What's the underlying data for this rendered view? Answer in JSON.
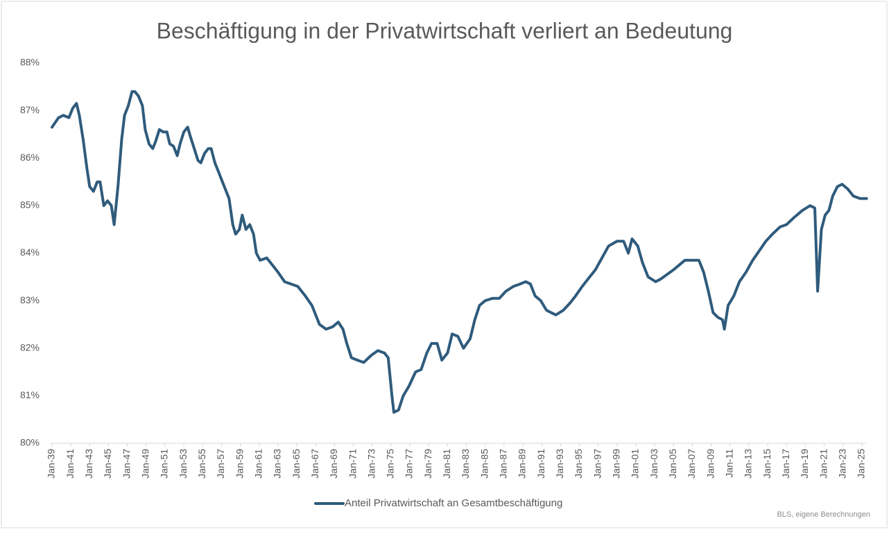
{
  "chart_data": {
    "type": "line",
    "title": "Beschäftigung in der Privatwirtschaft verliert an Bedeutung",
    "source": "BLS, eigene Berechnungen",
    "grid": false,
    "legend": "bottom",
    "xlim": [
      1939,
      2025.5
    ],
    "ylim": [
      80,
      88
    ],
    "yticks": [
      {
        "value": 80,
        "label": "80%"
      },
      {
        "value": 81,
        "label": "81%"
      },
      {
        "value": 82,
        "label": "82%"
      },
      {
        "value": 83,
        "label": "83%"
      },
      {
        "value": 84,
        "label": "84%"
      },
      {
        "value": 85,
        "label": "85%"
      },
      {
        "value": 86,
        "label": "86%"
      },
      {
        "value": 87,
        "label": "87%"
      },
      {
        "value": 88,
        "label": "88%"
      }
    ],
    "xticks": [
      {
        "value": 1939,
        "label": "Jan-39"
      },
      {
        "value": 1941,
        "label": "Jan-41"
      },
      {
        "value": 1943,
        "label": "Jan-43"
      },
      {
        "value": 1945,
        "label": "Jan-45"
      },
      {
        "value": 1947,
        "label": "Jan-47"
      },
      {
        "value": 1949,
        "label": "Jan-49"
      },
      {
        "value": 1951,
        "label": "Jan-51"
      },
      {
        "value": 1953,
        "label": "Jan-53"
      },
      {
        "value": 1955,
        "label": "Jan-55"
      },
      {
        "value": 1957,
        "label": "Jan-57"
      },
      {
        "value": 1959,
        "label": "Jan-59"
      },
      {
        "value": 1961,
        "label": "Jan-61"
      },
      {
        "value": 1963,
        "label": "Jan-63"
      },
      {
        "value": 1965,
        "label": "Jan-65"
      },
      {
        "value": 1967,
        "label": "Jan-67"
      },
      {
        "value": 1969,
        "label": "Jan-69"
      },
      {
        "value": 1971,
        "label": "Jan-71"
      },
      {
        "value": 1973,
        "label": "Jan-73"
      },
      {
        "value": 1975,
        "label": "Jan-75"
      },
      {
        "value": 1977,
        "label": "Jan-77"
      },
      {
        "value": 1979,
        "label": "Jan-79"
      },
      {
        "value": 1981,
        "label": "Jan-81"
      },
      {
        "value": 1983,
        "label": "Jan-83"
      },
      {
        "value": 1985,
        "label": "Jan-85"
      },
      {
        "value": 1987,
        "label": "Jan-87"
      },
      {
        "value": 1989,
        "label": "Jan-89"
      },
      {
        "value": 1991,
        "label": "Jan-91"
      },
      {
        "value": 1993,
        "label": "Jan-93"
      },
      {
        "value": 1995,
        "label": "Jan-95"
      },
      {
        "value": 1997,
        "label": "Jan-97"
      },
      {
        "value": 1999,
        "label": "Jan-99"
      },
      {
        "value": 2001,
        "label": "Jan-01"
      },
      {
        "value": 2003,
        "label": "Jan-03"
      },
      {
        "value": 2005,
        "label": "Jan-05"
      },
      {
        "value": 2007,
        "label": "Jan-07"
      },
      {
        "value": 2009,
        "label": "Jan-09"
      },
      {
        "value": 2011,
        "label": "Jan-11"
      },
      {
        "value": 2013,
        "label": "Jan-13"
      },
      {
        "value": 2015,
        "label": "Jan-15"
      },
      {
        "value": 2017,
        "label": "Jan-17"
      },
      {
        "value": 2019,
        "label": "Jan-19"
      },
      {
        "value": 2021,
        "label": "Jan-21"
      },
      {
        "value": 2023,
        "label": "Jan-23"
      },
      {
        "value": 2025,
        "label": "Jan-25"
      }
    ],
    "x": [
      1939.0,
      1939.7,
      1940.2,
      1940.8,
      1941.2,
      1941.6,
      1941.9,
      1942.3,
      1942.7,
      1943.0,
      1943.4,
      1943.8,
      1944.1,
      1944.5,
      1944.9,
      1945.3,
      1945.6,
      1946.0,
      1946.4,
      1946.7,
      1947.1,
      1947.5,
      1947.8,
      1948.2,
      1948.6,
      1948.9,
      1949.3,
      1949.7,
      1950.0,
      1950.4,
      1950.8,
      1951.2,
      1951.5,
      1951.9,
      1952.3,
      1952.6,
      1953.0,
      1953.4,
      1953.7,
      1954.1,
      1954.5,
      1954.8,
      1955.2,
      1955.6,
      1955.9,
      1956.3,
      1956.7,
      1957.0,
      1957.8,
      1958.2,
      1958.5,
      1958.9,
      1959.2,
      1959.6,
      1960.0,
      1960.4,
      1960.7,
      1961.1,
      1961.8,
      1962.2,
      1963.0,
      1963.7,
      1964.4,
      1965.1,
      1965.9,
      1966.6,
      1967.4,
      1968.1,
      1968.8,
      1969.4,
      1969.9,
      1970.3,
      1970.8,
      1971.4,
      1972.1,
      1972.9,
      1973.6,
      1974.3,
      1974.7,
      1975.1,
      1975.3,
      1975.8,
      1976.3,
      1976.9,
      1977.6,
      1978.2,
      1978.8,
      1979.3,
      1979.9,
      1980.4,
      1981.0,
      1981.5,
      1982.1,
      1982.7,
      1983.4,
      1983.9,
      1984.4,
      1985.0,
      1985.8,
      1986.5,
      1987.2,
      1988.0,
      1988.7,
      1989.3,
      1989.8,
      1990.3,
      1990.9,
      1991.5,
      1992.0,
      1992.5,
      1993.3,
      1994.0,
      1994.6,
      1995.3,
      1996.1,
      1996.7,
      1997.4,
      1998.1,
      1999.0,
      1999.7,
      2000.2,
      2000.6,
      2001.2,
      2001.7,
      2002.3,
      2003.1,
      2003.6,
      2004.3,
      2005.0,
      2005.6,
      2006.2,
      2007.1,
      2007.7,
      2008.2,
      2008.7,
      2009.2,
      2009.7,
      2010.2,
      2010.4,
      2010.8,
      2011.4,
      2012.0,
      2012.7,
      2013.4,
      2014.1,
      2014.8,
      2015.5,
      2016.3,
      2017.0,
      2017.8,
      2018.7,
      2019.5,
      2020.0,
      2020.3,
      2020.7,
      2021.1,
      2021.5,
      2021.9,
      2022.4,
      2022.9,
      2023.5,
      2024.1,
      2024.8,
      2025.5
    ],
    "series": [
      {
        "name": "Anteil Privatwirtschaft an Gesamtbeschäftigung",
        "color": "#2f5b7c",
        "values": [
          86.65,
          86.85,
          86.9,
          86.85,
          87.05,
          87.15,
          86.9,
          86.4,
          85.8,
          85.4,
          85.3,
          85.5,
          85.5,
          85.0,
          85.1,
          85.0,
          84.6,
          85.4,
          86.4,
          86.9,
          87.1,
          87.4,
          87.4,
          87.3,
          87.1,
          86.6,
          86.3,
          86.2,
          86.35,
          86.6,
          86.55,
          86.55,
          86.3,
          86.25,
          86.05,
          86.3,
          86.55,
          86.65,
          86.45,
          86.2,
          85.95,
          85.9,
          86.1,
          86.2,
          86.2,
          85.9,
          85.7,
          85.55,
          85.15,
          84.6,
          84.4,
          84.5,
          84.8,
          84.5,
          84.6,
          84.4,
          84.0,
          83.85,
          83.9,
          83.8,
          83.6,
          83.4,
          83.35,
          83.3,
          83.1,
          82.9,
          82.5,
          82.4,
          82.45,
          82.55,
          82.4,
          82.1,
          81.8,
          81.75,
          81.7,
          81.85,
          81.95,
          81.9,
          81.8,
          81.0,
          80.65,
          80.7,
          81.0,
          81.2,
          81.5,
          81.55,
          81.9,
          82.1,
          82.1,
          81.75,
          81.9,
          82.3,
          82.25,
          82.0,
          82.2,
          82.6,
          82.9,
          83.0,
          83.05,
          83.05,
          83.2,
          83.3,
          83.35,
          83.4,
          83.35,
          83.1,
          83.0,
          82.8,
          82.75,
          82.7,
          82.8,
          82.95,
          83.1,
          83.3,
          83.5,
          83.65,
          83.9,
          84.15,
          84.25,
          84.25,
          84.0,
          84.3,
          84.15,
          83.8,
          83.5,
          83.4,
          83.45,
          83.55,
          83.65,
          83.75,
          83.85,
          83.85,
          83.85,
          83.6,
          83.2,
          82.75,
          82.65,
          82.6,
          82.4,
          82.9,
          83.1,
          83.4,
          83.6,
          83.85,
          84.05,
          84.25,
          84.4,
          84.55,
          84.6,
          84.75,
          84.9,
          85.0,
          84.95,
          83.2,
          84.5,
          84.8,
          84.9,
          85.2,
          85.4,
          85.45,
          85.35,
          85.2,
          85.15,
          85.15
        ]
      }
    ]
  }
}
